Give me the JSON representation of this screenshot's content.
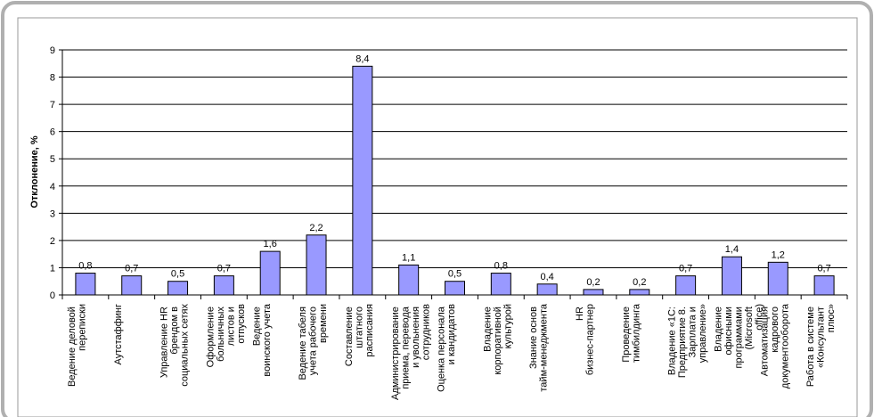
{
  "chart_data": {
    "type": "bar",
    "ylabel": "Отклонение, %",
    "categories": [
      "Ведение деловой переписки",
      "Аутстаффинг",
      "Управление HR брендом в социальных сетях",
      "Оформление больничных листов и отпусков",
      "Ведение воинского учета",
      "Ведение табеля учета рабочего времени",
      "Составление штатного расписания",
      "Администрирование приема, перевода и увольнения сотрудников",
      "Оценка персонала и кандидатов",
      "Владение корпоративной культурой",
      "Знание основ тайм-менеджмента",
      "HR бизнес-партнер",
      "Проведение тимбилдинга",
      "Владение «1С: Предприятие 8. Зарплата и управление»",
      "Владение офисными программами (Microsoft office)",
      "Автоматизация кадрового документооборота",
      "Работа в системе «Консультант плюс»"
    ],
    "values": [
      0.8,
      0.7,
      0.5,
      0.7,
      1.6,
      2.2,
      8.4,
      1.1,
      0.5,
      0.8,
      0.4,
      0.2,
      0.2,
      0.7,
      1.4,
      1.2,
      0.7
    ],
    "value_labels": [
      "0,8",
      "0,7",
      "0,5",
      "0,7",
      "1,6",
      "2,2",
      "8,4",
      "1,1",
      "0,5",
      "0,8",
      "0,4",
      "0,2",
      "0,2",
      "0,7",
      "1,4",
      "1,2",
      "0,7"
    ],
    "color": "#9999ff",
    "ylim": [
      0,
      9
    ],
    "yticks": [
      0,
      1,
      2,
      3,
      4,
      5,
      6,
      7,
      8,
      9
    ],
    "grid": true
  }
}
